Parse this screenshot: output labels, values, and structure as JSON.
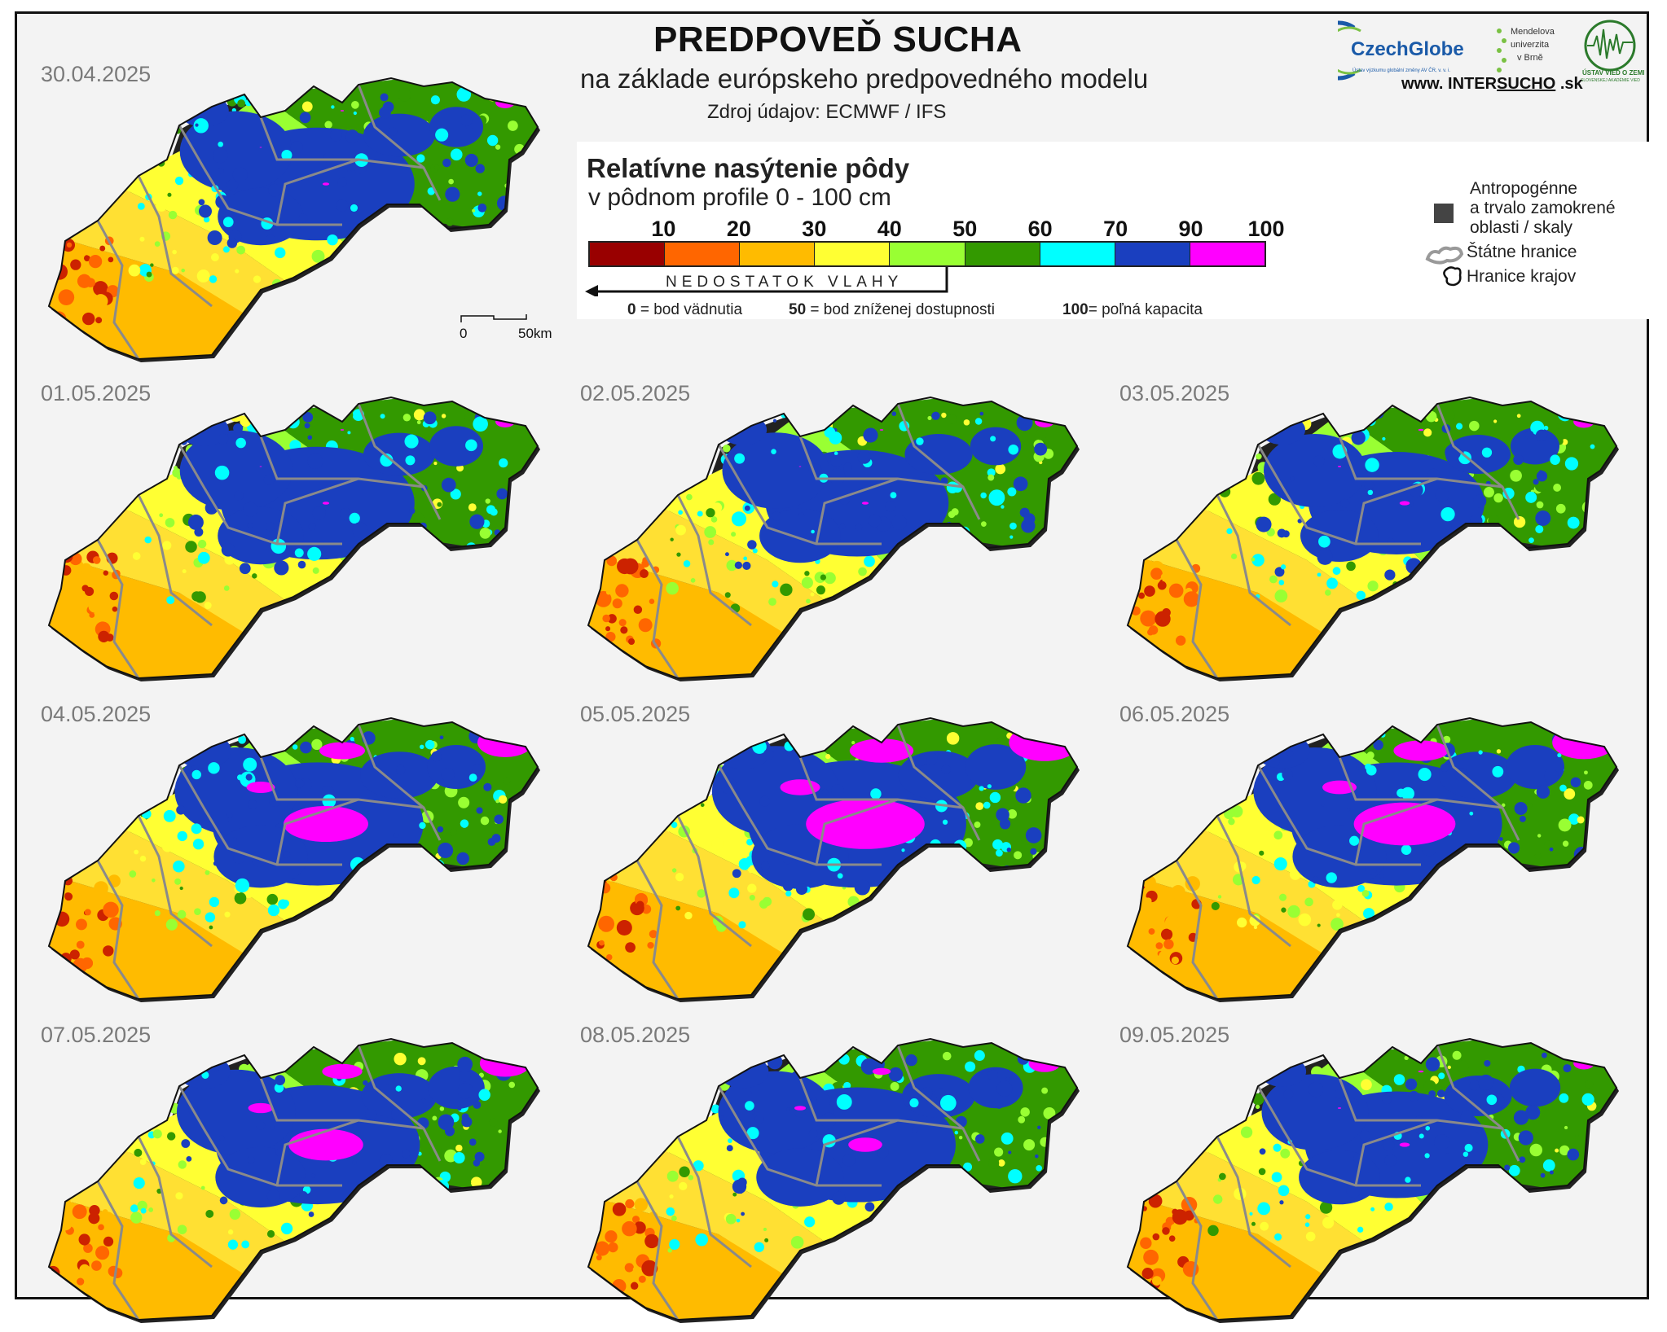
{
  "header": {
    "title": "PREDPOVEĎ SUCHA",
    "subtitle": "na základe európskeho predpovedného modelu",
    "source": "Zdroj údajov: ECMWF / IFS"
  },
  "logos": {
    "czechglobe": "CzechGlobe",
    "czechglobe_sub": "Ústav výzkumu globální změny AV ČR, v. v. i.",
    "mendel": "Mendelova univerzita v Brně",
    "uvz": "ÚSTAV VIED O ZEMI",
    "uvz_sub": "SLOVENSKEJ AKADÉMIE VIED",
    "website_pre": "www. INTER",
    "website_mid": "SUCHO",
    "website_post": " .sk"
  },
  "legend": {
    "title": "Relatívne nasýtenie pôdy",
    "subtitle": "v pôdnom profile 0 - 100 cm",
    "ticks": [
      "10",
      "20",
      "30",
      "40",
      "50",
      "60",
      "70",
      "90",
      "100"
    ],
    "colors": [
      "#990000",
      "#ff6600",
      "#ffbb00",
      "#ffff33",
      "#99ff33",
      "#339900",
      "#00ffff",
      "#1a3fbf",
      "#ff00ff"
    ],
    "deficit_label": "NEDOSTATOK VLAHY",
    "note1_num": "0",
    "note1_text": " = bod vädnutia",
    "note2_num": "50",
    "note2_text": " = bod zníženej dostupnosti",
    "note3_num": "100",
    "note3_text": "= poľná kapacita"
  },
  "side_legend": {
    "anthropogenic_1": "Antropogénne",
    "anthropogenic_2": "a trvalo zamokrené",
    "anthropogenic_3": "oblasti / skaly",
    "state_border": "Štátne hranice",
    "region_border": "Hranice krajov"
  },
  "scale": {
    "zero": "0",
    "dist": "50km"
  },
  "maps": [
    {
      "date": "30.04.2025",
      "wet": 0.55,
      "pink": 0.02
    },
    {
      "date": "01.05.2025",
      "wet": 0.55,
      "pink": 0.02
    },
    {
      "date": "02.05.2025",
      "wet": 0.52,
      "pink": 0.02
    },
    {
      "date": "03.05.2025",
      "wet": 0.5,
      "pink": 0.03
    },
    {
      "date": "04.05.2025",
      "wet": 0.6,
      "pink": 0.25
    },
    {
      "date": "05.05.2025",
      "wet": 0.62,
      "pink": 0.35
    },
    {
      "date": "06.05.2025",
      "wet": 0.6,
      "pink": 0.3
    },
    {
      "date": "07.05.2025",
      "wet": 0.58,
      "pink": 0.22
    },
    {
      "date": "08.05.2025",
      "wet": 0.56,
      "pink": 0.1
    },
    {
      "date": "09.05.2025",
      "wet": 0.52,
      "pink": 0.03
    }
  ]
}
